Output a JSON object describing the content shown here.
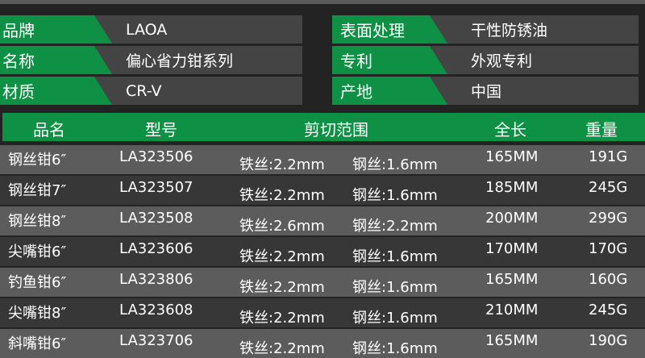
{
  "colors": {
    "accent": "#0e9144",
    "row_light": "#5c5c5c",
    "row_dark": "#373737"
  },
  "specs_left": [
    {
      "label": "品牌",
      "value": "LAOA"
    },
    {
      "label": "名称",
      "value": "偏心省力钳系列"
    },
    {
      "label": "材质",
      "value": "CR-V"
    }
  ],
  "specs_right": [
    {
      "label": "表面处理",
      "value": "干性防锈油"
    },
    {
      "label": "专利",
      "value": "外观专利"
    },
    {
      "label": "产地",
      "value": "中国"
    }
  ],
  "table": {
    "headers": [
      "品名",
      "型号",
      "剪切范围",
      "全长",
      "重量"
    ],
    "rows": [
      {
        "name": "钢丝钳6″",
        "model": "LA323506",
        "iron": "铁丝:2.2mm",
        "steel": "钢丝:1.6mm",
        "length": "165MM",
        "weight": "191G"
      },
      {
        "name": "钢丝钳7″",
        "model": "LA323507",
        "iron": "铁丝:2.2mm",
        "steel": "钢丝:1.6mm",
        "length": "185MM",
        "weight": "245G"
      },
      {
        "name": "钢丝钳8″",
        "model": "LA323508",
        "iron": "铁丝:2.6mm",
        "steel": "钢丝:2.2mm",
        "length": "200MM",
        "weight": "299G"
      },
      {
        "name": "尖嘴钳6″",
        "model": "LA323606",
        "iron": "铁丝:2.2mm",
        "steel": "钢丝:1.6mm",
        "length": "170MM",
        "weight": "170G"
      },
      {
        "name": "钓鱼钳6″",
        "model": "LA323806",
        "iron": "铁丝:2.2mm",
        "steel": "钢丝:1.6mm",
        "length": "165MM",
        "weight": "160G"
      },
      {
        "name": "尖嘴钳8″",
        "model": "LA323608",
        "iron": "铁丝:2.2mm",
        "steel": "钢丝:1.6mm",
        "length": "210MM",
        "weight": "245G"
      },
      {
        "name": "斜嘴钳6″",
        "model": "LA323706",
        "iron": "铁丝:2.2mm",
        "steel": "钢丝:1.6mm",
        "length": "165MM",
        "weight": "190G"
      }
    ]
  }
}
